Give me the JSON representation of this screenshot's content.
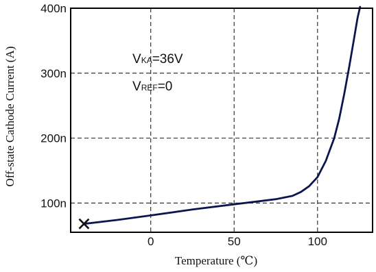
{
  "chart_data": {
    "type": "line",
    "xlabel": "Temperature (℃)",
    "ylabel": "Off-state Cathode Current (A)",
    "xlim": [
      -48,
      133
    ],
    "ylim": [
      55,
      400
    ],
    "xticks": [
      {
        "value": 0,
        "label": "0"
      },
      {
        "value": 50,
        "label": "50"
      },
      {
        "value": 100,
        "label": "100"
      }
    ],
    "yticks": [
      {
        "value": 100,
        "label": "100n"
      },
      {
        "value": 200,
        "label": "200n"
      },
      {
        "value": 300,
        "label": "300n"
      },
      {
        "value": 400,
        "label": "400n"
      }
    ],
    "grid": true,
    "grid_style": "dashed",
    "line_color": "#0b1650",
    "annotations": [
      {
        "main": "V",
        "sub": "KA",
        "rest": "=36V"
      },
      {
        "main": "V",
        "sub": "REF",
        "rest": "=0"
      }
    ],
    "series": [
      {
        "x": [
          -40,
          -20,
          0,
          25,
          50,
          75,
          85,
          90,
          95,
          100,
          105,
          110,
          113,
          116,
          119,
          122,
          124,
          125.5
        ],
        "y": [
          68,
          74,
          81,
          90,
          98,
          106,
          111,
          117,
          126,
          140,
          165,
          200,
          230,
          268,
          310,
          355,
          385,
          402
        ]
      }
    ],
    "markers": [
      {
        "x": -40,
        "y": 68,
        "symbol": "x"
      }
    ]
  }
}
